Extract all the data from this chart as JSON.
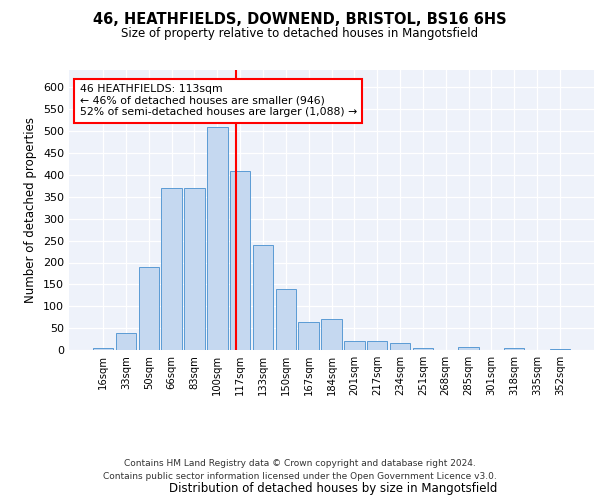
{
  "title1": "46, HEATHFIELDS, DOWNEND, BRISTOL, BS16 6HS",
  "title2": "Size of property relative to detached houses in Mangotsfield",
  "xlabel": "Distribution of detached houses by size in Mangotsfield",
  "ylabel": "Number of detached properties",
  "bin_labels": [
    "16sqm",
    "33sqm",
    "50sqm",
    "66sqm",
    "83sqm",
    "100sqm",
    "117sqm",
    "133sqm",
    "150sqm",
    "167sqm",
    "184sqm",
    "201sqm",
    "217sqm",
    "234sqm",
    "251sqm",
    "268sqm",
    "285sqm",
    "301sqm",
    "318sqm",
    "335sqm",
    "352sqm"
  ],
  "bar_values": [
    5,
    40,
    190,
    370,
    370,
    510,
    410,
    240,
    140,
    65,
    70,
    20,
    20,
    15,
    5,
    0,
    8,
    0,
    5,
    0,
    2
  ],
  "bar_color": "#c5d8f0",
  "bar_edge_color": "#5b9bd5",
  "vline_x_index": 5.82,
  "vline_color": "red",
  "annotation_text": "46 HEATHFIELDS: 113sqm\n← 46% of detached houses are smaller (946)\n52% of semi-detached houses are larger (1,088) →",
  "annotation_box_color": "white",
  "annotation_box_edge_color": "red",
  "ylim": [
    0,
    640
  ],
  "yticks": [
    0,
    50,
    100,
    150,
    200,
    250,
    300,
    350,
    400,
    450,
    500,
    550,
    600
  ],
  "footer1": "Contains HM Land Registry data © Crown copyright and database right 2024.",
  "footer2": "Contains public sector information licensed under the Open Government Licence v3.0.",
  "bg_color": "#eef2fa"
}
